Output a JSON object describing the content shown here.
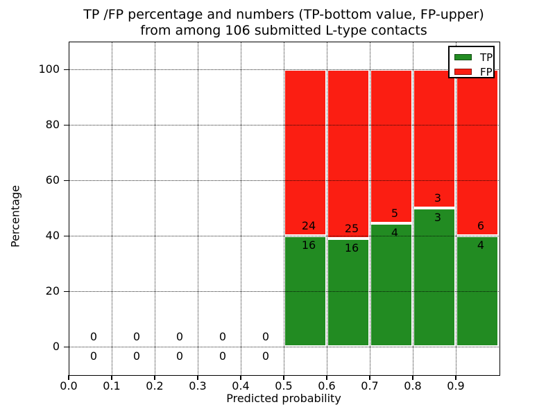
{
  "title": {
    "line1": "TP /FP percentage and numbers (TP-bottom value, FP-upper)",
    "line2": "from among 106 submitted L-type contacts"
  },
  "colors": {
    "tp": "#228b22",
    "fp": "#fb1e12",
    "bar_edge": "#ffffff",
    "grid": "#000000",
    "frame": "#000000",
    "background": "#ffffff"
  },
  "chart_data": {
    "type": "bar",
    "stacked": true,
    "title_lines": [
      "TP /FP percentage and numbers (TP-bottom value, FP-upper)",
      "from among 106 submitted L-type contacts"
    ],
    "xlabel": "Predicted probability",
    "ylabel": "Percentage",
    "xlim": [
      0.0,
      1.0
    ],
    "ylim": [
      -10,
      110
    ],
    "xticks": [
      0.0,
      0.1,
      0.2,
      0.3,
      0.4,
      0.5,
      0.6,
      0.7,
      0.8,
      0.9
    ],
    "yticks": [
      0,
      20,
      40,
      60,
      80,
      100
    ],
    "grid": "dotted",
    "total_contacts": 106,
    "legend": {
      "position": "upper right",
      "entries": [
        {
          "label": "TP",
          "color": "#228b22"
        },
        {
          "label": "FP",
          "color": "#fb1e12"
        }
      ]
    },
    "bins": [
      {
        "x_start": 0.0,
        "x_end": 0.1,
        "tp_count": 0,
        "fp_count": 0,
        "tp_pct": 0,
        "fp_pct": 0
      },
      {
        "x_start": 0.1,
        "x_end": 0.2,
        "tp_count": 0,
        "fp_count": 0,
        "tp_pct": 0,
        "fp_pct": 0
      },
      {
        "x_start": 0.2,
        "x_end": 0.3,
        "tp_count": 0,
        "fp_count": 0,
        "tp_pct": 0,
        "fp_pct": 0
      },
      {
        "x_start": 0.3,
        "x_end": 0.4,
        "tp_count": 0,
        "fp_count": 0,
        "tp_pct": 0,
        "fp_pct": 0
      },
      {
        "x_start": 0.4,
        "x_end": 0.5,
        "tp_count": 0,
        "fp_count": 0,
        "tp_pct": 0,
        "fp_pct": 0
      },
      {
        "x_start": 0.5,
        "x_end": 0.6,
        "tp_count": 16,
        "fp_count": 24,
        "tp_pct": 40.0,
        "fp_pct": 60.0
      },
      {
        "x_start": 0.6,
        "x_end": 0.7,
        "tp_count": 16,
        "fp_count": 25,
        "tp_pct": 39.02,
        "fp_pct": 60.98
      },
      {
        "x_start": 0.7,
        "x_end": 0.8,
        "tp_count": 4,
        "fp_count": 5,
        "tp_pct": 44.44,
        "fp_pct": 55.56
      },
      {
        "x_start": 0.8,
        "x_end": 0.9,
        "tp_count": 3,
        "fp_count": 3,
        "tp_pct": 50.0,
        "fp_pct": 50.0
      },
      {
        "x_start": 0.9,
        "x_end": 1.0,
        "tp_count": 4,
        "fp_count": 6,
        "tp_pct": 40.0,
        "fp_pct": 60.0
      }
    ]
  }
}
